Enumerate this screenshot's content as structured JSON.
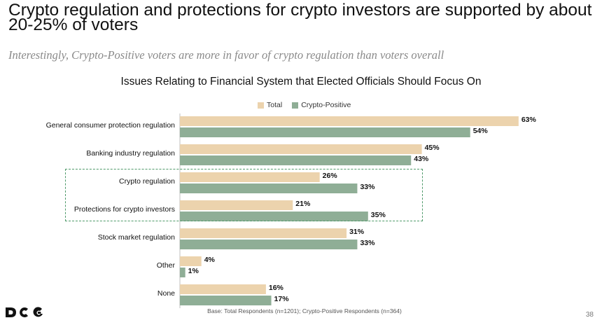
{
  "slide": {
    "title": "Crypto regulation and protections for crypto investors are supported by about 20-25% of voters",
    "subtitle": "Interestingly, Crypto-Positive voters are more in favor of crypto regulation than voters overall",
    "footnote": "Base: Total Respondents (n=1201); Crypto-Positive Respondents (n=364)",
    "page_number": "38",
    "logo_text": "DCG"
  },
  "colors": {
    "total": "#ecd3ad",
    "crypto_positive": "#8fae96",
    "highlight_border": "#4f9a6a"
  },
  "chart_data": {
    "type": "bar",
    "orientation": "horizontal",
    "title": "Issues Relating to Financial System that Elected Officials Should Focus On",
    "categories": [
      "General consumer protection regulation",
      "Banking industry regulation",
      "Crypto regulation",
      "Protections for crypto investors",
      "Stock market regulation",
      "Other",
      "None"
    ],
    "series": [
      {
        "name": "Total",
        "values": [
          63,
          45,
          26,
          21,
          31,
          4,
          16
        ]
      },
      {
        "name": "Crypto-Positive",
        "values": [
          54,
          43,
          33,
          35,
          33,
          1,
          17
        ]
      }
    ],
    "value_suffix": "%",
    "xlim": [
      0,
      100
    ],
    "grid": false,
    "legend_position": "top-center",
    "highlighted_categories": [
      "Crypto regulation",
      "Protections for crypto investors"
    ]
  }
}
